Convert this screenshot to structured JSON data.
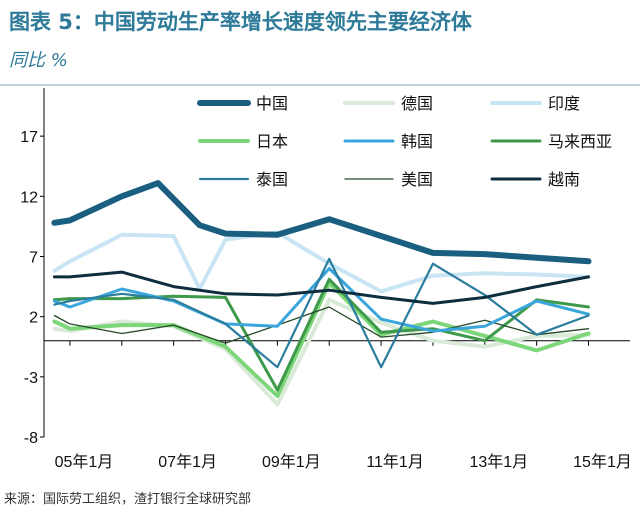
{
  "header": {
    "title": "图表 5：中国劳动生产率增长速度领先主要经济体",
    "subtitle": "同比 %"
  },
  "footer": {
    "source": "来源：国际劳工组织，渣打银行全球研究部"
  },
  "chart_data": {
    "type": "line",
    "title": "图表 5：中国劳动生产率增长速度领先主要经济体",
    "ylabel": "同比 %",
    "xlabel": "",
    "ylim": [
      -8,
      21
    ],
    "yticks": [
      17,
      12,
      7,
      2,
      -3,
      -8
    ],
    "x": [
      2005,
      2006,
      2007,
      2008,
      2009,
      2010,
      2011,
      2012,
      2013,
      2014,
      2015
    ],
    "xlim": [
      2004.5,
      2015.8
    ],
    "xtick_labels": [
      "05年1月",
      "07年1月",
      "09年1月",
      "11年1月",
      "13年1月",
      "15年1月"
    ],
    "xtick_values": [
      2005,
      2007,
      2009,
      2011,
      2013,
      2015
    ],
    "legend_position": "top-right",
    "series": [
      {
        "name": "中国",
        "color": "#1a5f80",
        "width": 6,
        "x": [
          2004.7,
          2005,
          2006,
          2006.7,
          2007.5,
          2008,
          2009,
          2010,
          2011,
          2012,
          2013,
          2014,
          2015
        ],
        "values": [
          9.8,
          10.0,
          12.0,
          13.1,
          9.6,
          8.9,
          8.8,
          10.1,
          8.7,
          7.3,
          7.2,
          6.9,
          6.6
        ]
      },
      {
        "name": "德国",
        "color": "#d9ead9",
        "width": 4,
        "x": [
          2004.7,
          2005,
          2006,
          2007,
          2008,
          2009,
          2010,
          2011,
          2012,
          2013,
          2014,
          2015
        ],
        "values": [
          1.0,
          0.8,
          1.6,
          1.2,
          -0.7,
          -5.3,
          3.4,
          1.5,
          0.0,
          -0.5,
          0.4,
          0.5
        ]
      },
      {
        "name": "印度",
        "color": "#c9e5f3",
        "width": 4,
        "x": [
          2004.7,
          2005,
          2006,
          2007,
          2007.5,
          2008,
          2009,
          2010,
          2011,
          2012,
          2013,
          2014,
          2015
        ],
        "values": [
          5.8,
          6.6,
          8.8,
          8.7,
          4.3,
          8.4,
          9.0,
          6.4,
          4.1,
          5.4,
          5.6,
          5.5,
          5.3
        ]
      },
      {
        "name": "日本",
        "color": "#7dd67a",
        "width": 4,
        "x": [
          2004.7,
          2005,
          2006,
          2007,
          2008,
          2009,
          2010,
          2011,
          2012,
          2013,
          2014,
          2015
        ],
        "values": [
          1.6,
          1.0,
          1.3,
          1.3,
          -0.5,
          -4.6,
          4.8,
          0.5,
          1.6,
          0.4,
          -0.8,
          0.6
        ]
      },
      {
        "name": "韩国",
        "color": "#3aa6dc",
        "width": 3,
        "x": [
          2004.7,
          2005,
          2006,
          2007,
          2008,
          2009,
          2010,
          2011,
          2012,
          2013,
          2014,
          2015
        ],
        "values": [
          3.3,
          2.8,
          4.3,
          3.3,
          1.4,
          1.2,
          6.0,
          1.8,
          0.8,
          1.2,
          3.3,
          2.2
        ]
      },
      {
        "name": "马来西亚",
        "color": "#3e9a4a",
        "width": 3,
        "x": [
          2004.7,
          2005,
          2006,
          2007,
          2008,
          2009,
          2010,
          2011,
          2012,
          2013,
          2014,
          2015
        ],
        "values": [
          3.4,
          3.5,
          3.5,
          3.7,
          3.6,
          -4.1,
          5.1,
          0.7,
          1.0,
          0.0,
          3.4,
          2.8
        ]
      },
      {
        "name": "泰国",
        "color": "#2b7d9e",
        "width": 2.2,
        "x": [
          2004.7,
          2005,
          2006,
          2007,
          2008,
          2009,
          2010,
          2011,
          2012,
          2013,
          2014,
          2015
        ],
        "values": [
          3.0,
          3.3,
          3.9,
          3.4,
          1.4,
          -2.2,
          6.8,
          -2.2,
          6.4,
          3.8,
          0.5,
          2.1
        ]
      },
      {
        "name": "美国",
        "color": "#254a2a",
        "width": 1.3,
        "x": [
          2004.7,
          2005,
          2006,
          2007,
          2008,
          2009,
          2010,
          2011,
          2012,
          2013,
          2014,
          2015
        ],
        "values": [
          2.1,
          1.4,
          0.6,
          1.3,
          -0.2,
          1.3,
          2.8,
          0.3,
          0.7,
          1.7,
          0.5,
          1.0
        ]
      },
      {
        "name": "越南",
        "color": "#0e2d3e",
        "width": 3,
        "x": [
          2004.7,
          2005,
          2006,
          2007,
          2008,
          2009,
          2010,
          2011,
          2012,
          2013,
          2014,
          2015
        ],
        "values": [
          5.3,
          5.3,
          5.7,
          4.5,
          3.9,
          3.8,
          4.2,
          3.6,
          3.1,
          3.6,
          4.5,
          5.3
        ]
      }
    ]
  }
}
